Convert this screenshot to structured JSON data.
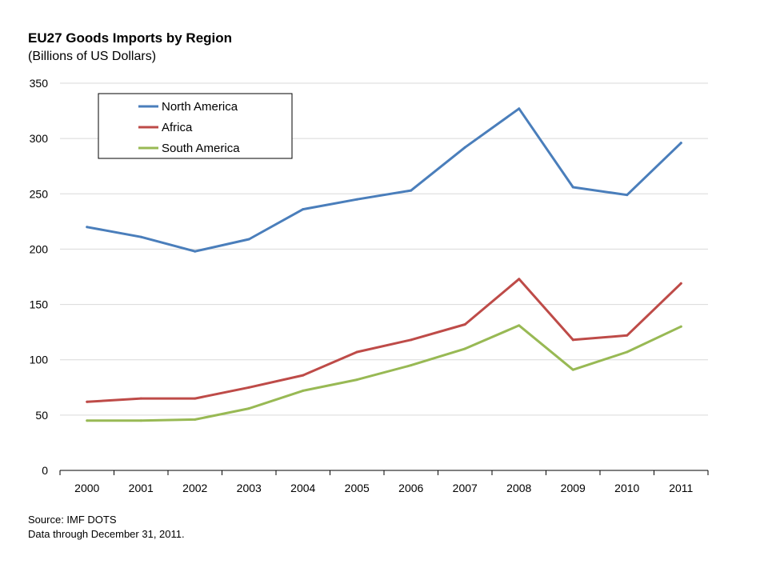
{
  "chart_data": {
    "type": "line",
    "title": "EU27 Goods Imports by Region",
    "subtitle": "(Billions of US Dollars)",
    "x": [
      "2000",
      "2001",
      "2002",
      "2003",
      "2004",
      "2005",
      "2006",
      "2007",
      "2008",
      "2009",
      "2010",
      "2011"
    ],
    "ylim": [
      0,
      350
    ],
    "yticks": [
      0,
      50,
      100,
      150,
      200,
      250,
      300,
      350
    ],
    "grid": true,
    "legend_position": "top-left",
    "series": [
      {
        "name": "North America",
        "color": "#4a7ebb",
        "values": [
          220,
          211,
          198,
          209,
          236,
          245,
          253,
          292,
          327,
          256,
          249,
          296
        ]
      },
      {
        "name": "Africa",
        "color": "#be4b48",
        "values": [
          62,
          65,
          65,
          75,
          86,
          107,
          118,
          132,
          173,
          118,
          122,
          169
        ]
      },
      {
        "name": "South America",
        "color": "#98b954",
        "values": [
          45,
          45,
          46,
          56,
          72,
          82,
          95,
          110,
          131,
          91,
          107,
          130
        ]
      }
    ]
  },
  "footnotes": {
    "source": "Source: IMF  DOTS",
    "through": "Data through December 31, 2011."
  }
}
